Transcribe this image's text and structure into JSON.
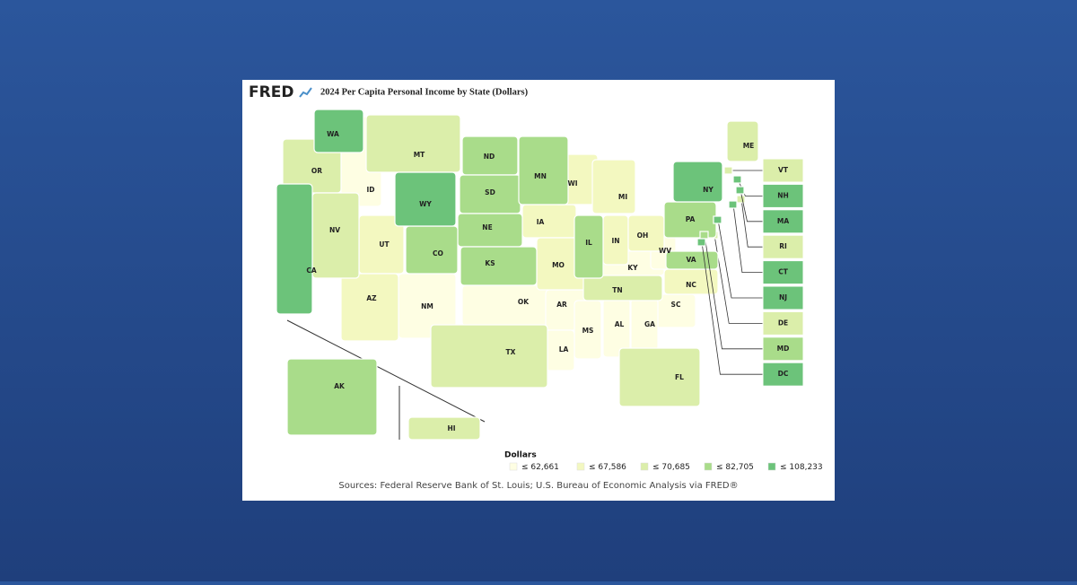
{
  "header": {
    "logo": "FRED",
    "title": "2024 Per Capita Personal Income by State (Dollars)"
  },
  "legend": {
    "title": "Dollars",
    "items": [
      {
        "value": 62661,
        "label": "≤ 62,661",
        "color": "#fefee3",
        "states": [
          "ID",
          "NM",
          "OK",
          "AR",
          "MS",
          "LA",
          "AL",
          "KY",
          "WV",
          "SC",
          "GA"
        ]
      },
      {
        "value": 67586,
        "label": "≤ 67,586",
        "color": "#f3f8c0",
        "states": [
          "UT",
          "AZ",
          "IA",
          "WI",
          "MI",
          "IN",
          "OH",
          "NC",
          "MO"
        ]
      },
      {
        "value": 70685,
        "label": "≤ 70,685",
        "color": "#dbeeaa",
        "states": [
          "OR",
          "NV",
          "MT",
          "TX",
          "FL",
          "TN",
          "ME",
          "VT",
          "RI",
          "DE",
          "HI"
        ]
      },
      {
        "value": 82705,
        "label": "≤ 82,705",
        "color": "#a9dc8a",
        "states": [
          "ND",
          "SD",
          "NE",
          "KS",
          "MN",
          "IL",
          "CO",
          "PA",
          "VA",
          "MD",
          "AK"
        ]
      },
      {
        "value": 108233,
        "label": "≤ 108,233",
        "color": "#6cc37a",
        "states": [
          "WA",
          "CA",
          "WY",
          "NY",
          "NH",
          "MA",
          "CT",
          "NJ",
          "DC"
        ]
      }
    ]
  },
  "source": "Sources: Federal Reserve Bank of St. Louis; U.S. Bureau of Economic Analysis via FRED®"
}
